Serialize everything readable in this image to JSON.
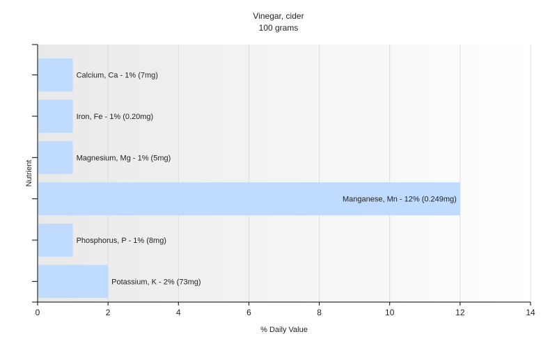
{
  "chart_data": {
    "type": "bar",
    "orientation": "horizontal",
    "title": "Vinegar, cider",
    "subtitle": "100 grams",
    "xlabel": "% Daily Value",
    "ylabel": "Nutrient",
    "xlim": [
      0,
      14
    ],
    "xticks": [
      0,
      2,
      4,
      6,
      8,
      10,
      12,
      14
    ],
    "grid": true,
    "legend": "none",
    "bar_color": "#bfdbff",
    "categories": [
      "Calcium, Ca",
      "Iron, Fe",
      "Magnesium, Mg",
      "Manganese, Mn",
      "Phosphorus, P",
      "Potassium, K"
    ],
    "values": [
      1,
      1,
      1,
      12,
      1,
      2
    ],
    "labels": [
      "Calcium, Ca - 1% (7mg)",
      "Iron, Fe - 1% (0.20mg)",
      "Magnesium, Mg - 1% (5mg)",
      "Manganese, Mn - 12% (0.249mg)",
      "Phosphorus, P - 1% (8mg)",
      "Potassium, K - 2% (73mg)"
    ]
  }
}
